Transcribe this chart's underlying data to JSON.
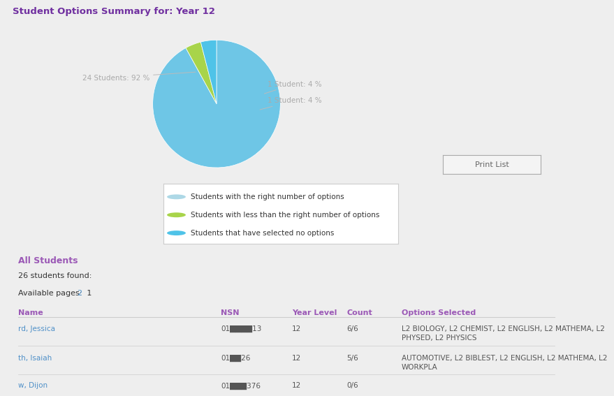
{
  "title": "Student Options Summary for: Year 12",
  "title_color": "#7030A0",
  "bg_color": "#eeeeee",
  "pie_values": [
    92,
    4,
    4
  ],
  "pie_colors": [
    "#6EC6E6",
    "#A8D44A",
    "#4FC3E8"
  ],
  "pie_labels": [
    "24 Students: 92 %",
    "1 Student: 4 %",
    "1 Student: 4 %"
  ],
  "legend_labels": [
    "Students with the right number of options",
    "Students with less than the right number of options",
    "Students that have selected no options"
  ],
  "legend_colors": [
    "#ADD8E6",
    "#A8D44A",
    "#4FC3E8"
  ],
  "print_button_text": "Print List",
  "all_students_text": "All Students",
  "students_found_text": "26 students found:",
  "avail_pages_text": "Available pages:",
  "page_nums": [
    "1",
    "2"
  ],
  "table_headers": [
    "Name",
    "NSN",
    "Year Level",
    "Count",
    "Options Selected"
  ],
  "table_rows": [
    [
      "rd, Jessica",
      "01████13",
      "12",
      "6/6",
      "L2 BIOLOGY, L2 CHEMIST, L2 ENGLISH, L2 MATHEMA, L2\nPHYSED, L2 PHYSICS"
    ],
    [
      "th, Isaiah",
      "01██26",
      "12",
      "5/6",
      "AUTOMOTIVE, L2 BIBLEST, L2 ENGLISH, L2 MATHEMA, L2\nWORKPLA"
    ],
    [
      "w, Dijon",
      "01███376",
      "12",
      "0/6",
      ""
    ]
  ],
  "link_color": "#4F90C8",
  "header_color": "#9B59B6",
  "row_text_color": "#555555",
  "legend_box_color": "#ffffff",
  "legend_border_color": "#cccccc",
  "divider_color": "#cccccc",
  "label_color": "#aaaaaa"
}
